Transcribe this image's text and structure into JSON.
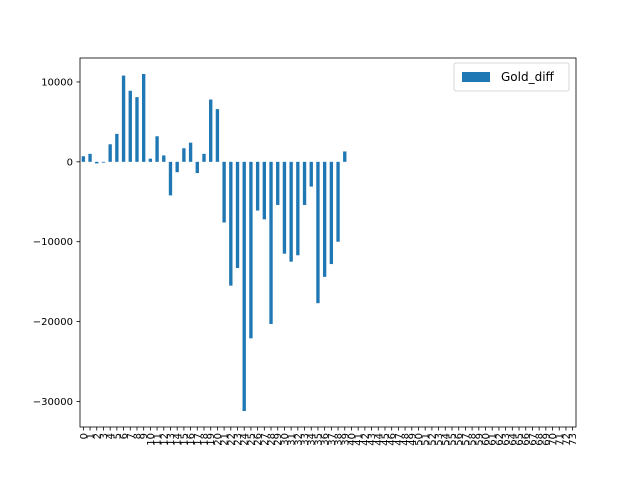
{
  "chart_data": {
    "type": "bar",
    "categories": [
      "0",
      "1",
      "2",
      "3",
      "4",
      "5",
      "6",
      "7",
      "8",
      "9",
      "10",
      "11",
      "12",
      "13",
      "14",
      "15",
      "16",
      "17",
      "18",
      "19",
      "20",
      "21",
      "22",
      "23",
      "24",
      "25",
      "26",
      "27",
      "28",
      "29",
      "30",
      "31",
      "32",
      "33",
      "34",
      "35",
      "36",
      "37",
      "38",
      "39",
      "40",
      "41",
      "42",
      "43",
      "44",
      "45",
      "46",
      "47",
      "48",
      "49",
      "50",
      "51",
      "52",
      "53",
      "54",
      "55",
      "56",
      "57",
      "58",
      "59",
      "60",
      "61",
      "62",
      "63",
      "64",
      "65",
      "66",
      "67",
      "68",
      "69",
      "70",
      "71",
      "72",
      "73"
    ],
    "series": [
      {
        "name": "Gold_diff",
        "color": "#1f77b4",
        "values": [
          700,
          1000,
          -200,
          -100,
          2200,
          3500,
          10800,
          8900,
          8100,
          11000,
          400,
          3200,
          800,
          -4200,
          -1300,
          1700,
          2400,
          -1400,
          1000,
          7800,
          6600,
          -7600,
          -15500,
          -13300,
          -31200,
          -22100,
          -6100,
          -7200,
          -20300,
          -5400,
          -11500,
          -12500,
          -11700,
          -5400,
          -3100,
          -17700,
          -14400,
          -12800,
          -10000,
          1300,
          null,
          null,
          null,
          null,
          null,
          null,
          null,
          null,
          null,
          null,
          null,
          null,
          null,
          null,
          null,
          null,
          null,
          null,
          null,
          null,
          null,
          null,
          null,
          null,
          null,
          null,
          null,
          null,
          null,
          null,
          null,
          null,
          null,
          null
        ]
      }
    ],
    "yticks": [
      10000,
      0,
      -10000,
      -20000,
      -30000
    ],
    "ytick_labels": [
      "10000",
      "0",
      "−10000",
      "−20000",
      "−30000"
    ],
    "ylim": [
      -33200,
      13000
    ],
    "legend_position": "top-right",
    "grid": false,
    "xlabel": "",
    "ylabel": ""
  }
}
